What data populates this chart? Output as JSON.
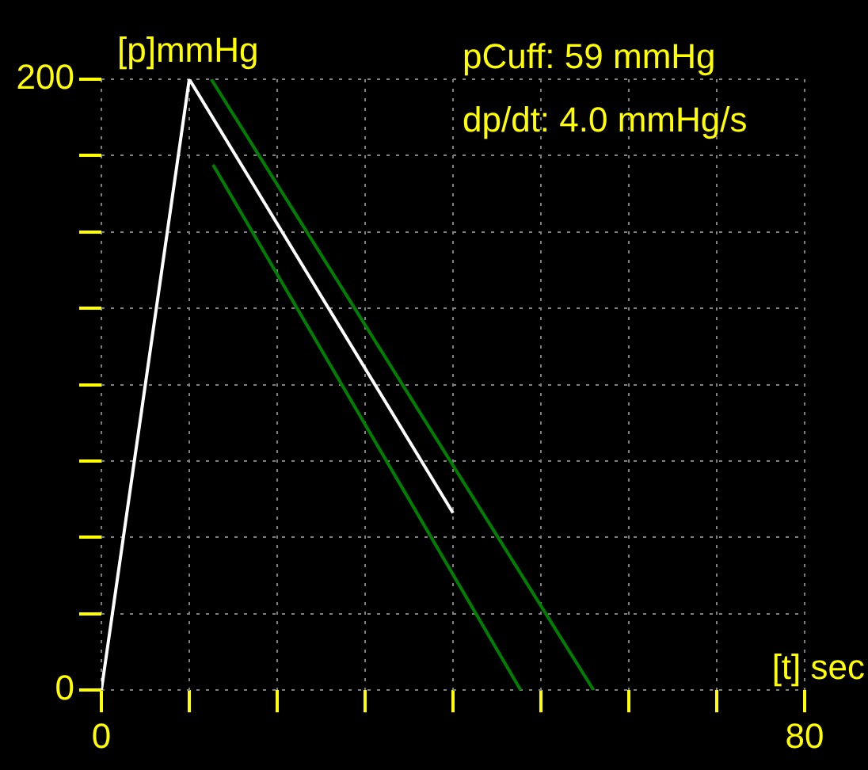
{
  "chart_data": {
    "type": "line",
    "xlabel": "[t] sec",
    "ylabel": "[p]mmHg",
    "annotations": [
      "pCuff: 59 mmHg",
      "dp/dt: 4.0 mmHg/s"
    ],
    "series": [
      {
        "color": "#ffffff",
        "x": [
          0,
          10,
          40
        ],
        "values": [
          0,
          200,
          58
        ]
      },
      {
        "color": "#008000",
        "x": [
          12.5,
          56
        ],
        "values": [
          200,
          0
        ]
      },
      {
        "color": "#008000",
        "x": [
          12.7,
          47.7
        ],
        "values": [
          172,
          0
        ]
      }
    ],
    "xlim": [
      0,
      80
    ],
    "xticks": [
      0,
      {
        "value": 10,
        "label": null
      },
      {
        "value": 20,
        "label": null
      },
      {
        "value": 30,
        "label": null
      },
      {
        "value": 40,
        "label": null
      },
      {
        "value": 50,
        "label": null
      },
      {
        "value": 60,
        "label": null
      },
      {
        "value": 70,
        "label": null
      },
      80
    ],
    "ylim": [
      0,
      200
    ],
    "yticks": [
      0,
      {
        "value": 25,
        "label": null
      },
      {
        "value": 50,
        "label": null
      },
      {
        "value": 75,
        "label": null
      },
      {
        "value": 100,
        "label": null
      },
      {
        "value": 125,
        "label": null
      },
      {
        "value": 150,
        "label": null
      },
      {
        "value": 175,
        "label": null
      },
      200
    ],
    "grid": true,
    "legend": false,
    "marker": "none",
    "line_style": "solid"
  }
}
